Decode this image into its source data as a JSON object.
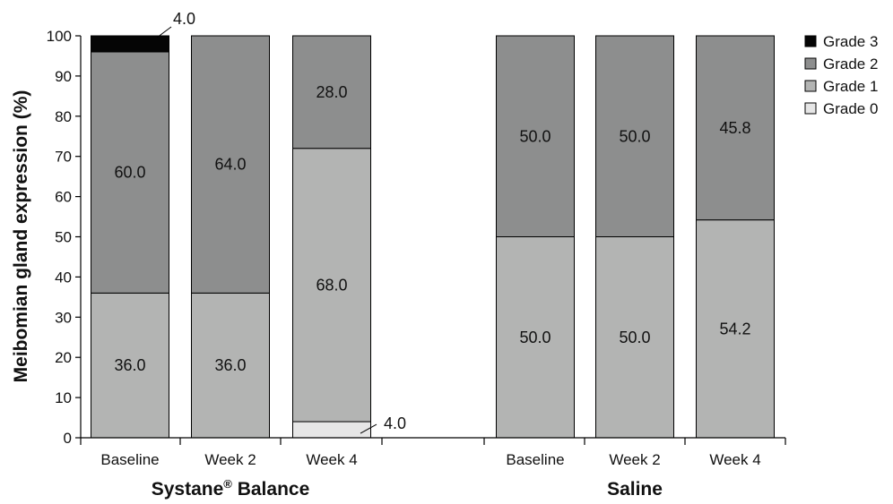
{
  "chart_data": {
    "type": "bar",
    "stacked": true,
    "ylabel": "Meibomian gland expression (%)",
    "ylim": [
      0,
      100
    ],
    "yticks": [
      0,
      10,
      20,
      30,
      40,
      50,
      60,
      70,
      80,
      90,
      100
    ],
    "grid": false,
    "legend_position": "right",
    "groups": [
      {
        "name": "Systane® Balance",
        "name_base": "Systane",
        "name_sup": "®",
        "name_rest": " Balance",
        "categories": [
          "Baseline",
          "Week 2",
          "Week 4"
        ]
      },
      {
        "name": "Saline",
        "categories": [
          "Baseline",
          "Week 2",
          "Week 4"
        ]
      }
    ],
    "series": [
      {
        "name": "Grade 0",
        "color": "#e6e6e6",
        "values": [
          0,
          0,
          4.0,
          0,
          0,
          0
        ]
      },
      {
        "name": "Grade 1",
        "color": "#b3b4b3",
        "values": [
          36.0,
          36.0,
          68.0,
          50.0,
          50.0,
          54.2
        ]
      },
      {
        "name": "Grade 2",
        "color": "#8d8e8e",
        "values": [
          60.0,
          64.0,
          28.0,
          50.0,
          50.0,
          45.8
        ]
      },
      {
        "name": "Grade 3",
        "color": "#050505",
        "values": [
          4.0,
          0,
          0,
          0,
          0,
          0
        ]
      }
    ],
    "legend_order": [
      "Grade 3",
      "Grade 2",
      "Grade 1",
      "Grade 0"
    ],
    "data_labels": [
      {
        "bar": 0,
        "series": "Grade 1",
        "text": "36.0"
      },
      {
        "bar": 0,
        "series": "Grade 2",
        "text": "60.0"
      },
      {
        "bar": 0,
        "series": "Grade 3",
        "text": "4.0",
        "callout": "above"
      },
      {
        "bar": 1,
        "series": "Grade 1",
        "text": "36.0"
      },
      {
        "bar": 1,
        "series": "Grade 2",
        "text": "64.0"
      },
      {
        "bar": 2,
        "series": "Grade 0",
        "text": "4.0",
        "callout": "right"
      },
      {
        "bar": 2,
        "series": "Grade 1",
        "text": "68.0"
      },
      {
        "bar": 2,
        "series": "Grade 2",
        "text": "28.0"
      },
      {
        "bar": 3,
        "series": "Grade 1",
        "text": "50.0"
      },
      {
        "bar": 3,
        "series": "Grade 2",
        "text": "50.0"
      },
      {
        "bar": 4,
        "series": "Grade 1",
        "text": "50.0"
      },
      {
        "bar": 4,
        "series": "Grade 2",
        "text": "50.0"
      },
      {
        "bar": 5,
        "series": "Grade 1",
        "text": "54.2"
      },
      {
        "bar": 5,
        "series": "Grade 2",
        "text": "45.8"
      }
    ]
  }
}
